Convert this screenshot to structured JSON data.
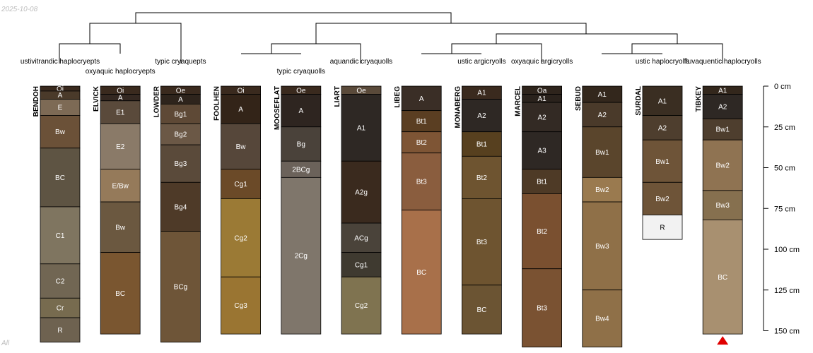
{
  "meta": {
    "date": "2025-10-08",
    "corner_label": "All"
  },
  "depth_axis": {
    "max_cm": 150,
    "ticks": [
      {
        "depth": 0,
        "label": "0 cm"
      },
      {
        "depth": 25,
        "label": "25 cm"
      },
      {
        "depth": 50,
        "label": "50 cm"
      },
      {
        "depth": 75,
        "label": "75 cm"
      },
      {
        "depth": 100,
        "label": "100 cm"
      },
      {
        "depth": 125,
        "label": "125 cm"
      },
      {
        "depth": 150,
        "label": "150 cm"
      }
    ]
  },
  "truncation_marker": {
    "profile": "TIBKEY",
    "color": "#e00000"
  },
  "taxa": [
    {
      "label": "ustivitrandic haplocryepts",
      "profile": "BENDOH"
    },
    {
      "label": "oxyaquic haplocryepts",
      "profile": "ELVICK"
    },
    {
      "label": "typic cryaquepts",
      "profile": "LOWDER"
    },
    {
      "label": "typic cryaquolls",
      "profile": "MOOSEFLAT"
    },
    {
      "label": "aquandic cryaquolls",
      "profile": "LIART"
    },
    {
      "label": "ustic argicryolls",
      "profile": "MONABERG"
    },
    {
      "label": "oxyaquic argicryolls",
      "profile": "MARCEL"
    },
    {
      "label": "ustic haplocryolls",
      "profile": "SURDAL"
    },
    {
      "label": "fluvaquentic haplocryolls",
      "profile": "TIBKEY"
    }
  ],
  "profiles": [
    {
      "name": "BENDOH",
      "horizons": [
        {
          "name": "Oi",
          "top": 0,
          "bottom": 3,
          "color": "#3a2a1e"
        },
        {
          "name": "A",
          "top": 3,
          "bottom": 8,
          "color": "#4a3a2a"
        },
        {
          "name": "E",
          "top": 8,
          "bottom": 18,
          "color": "#7d6a55"
        },
        {
          "name": "Bw",
          "top": 18,
          "bottom": 38,
          "color": "#6b5138"
        },
        {
          "name": "BC",
          "top": 38,
          "bottom": 74,
          "color": "#5e5443"
        },
        {
          "name": "C1",
          "top": 74,
          "bottom": 109,
          "color": "#7f7560"
        },
        {
          "name": "C2",
          "top": 109,
          "bottom": 130,
          "color": "#716653"
        },
        {
          "name": "Cr",
          "top": 130,
          "bottom": 142,
          "color": "#776b4f"
        },
        {
          "name": "R",
          "top": 142,
          "bottom": 157,
          "color": "#6e6250"
        }
      ]
    },
    {
      "name": "ELVICK",
      "horizons": [
        {
          "name": "Oi",
          "top": 0,
          "bottom": 5,
          "color": "#3a2a1e"
        },
        {
          "name": "A",
          "top": 5,
          "bottom": 9,
          "color": "#342821"
        },
        {
          "name": "E1",
          "top": 9,
          "bottom": 23,
          "color": "#5a4a3b"
        },
        {
          "name": "E2",
          "top": 23,
          "bottom": 51,
          "color": "#8a7a68"
        },
        {
          "name": "E/Bw",
          "top": 51,
          "bottom": 71,
          "color": "#957a5a"
        },
        {
          "name": "Bw",
          "top": 71,
          "bottom": 102,
          "color": "#6b5840"
        },
        {
          "name": "BC",
          "top": 102,
          "bottom": 152,
          "color": "#7a5630"
        }
      ]
    },
    {
      "name": "LOWDER",
      "horizons": [
        {
          "name": "Oe",
          "top": 0,
          "bottom": 5,
          "color": "#3a2a1e"
        },
        {
          "name": "A",
          "top": 5,
          "bottom": 11,
          "color": "#2e241c"
        },
        {
          "name": "Bg1",
          "top": 11,
          "bottom": 23,
          "color": "#5e4936"
        },
        {
          "name": "Bg2",
          "top": 23,
          "bottom": 36,
          "color": "#6b5846"
        },
        {
          "name": "Bg3",
          "top": 36,
          "bottom": 59,
          "color": "#5a4a3a"
        },
        {
          "name": "Bg4",
          "top": 59,
          "bottom": 89,
          "color": "#4e3a28"
        },
        {
          "name": "BCg",
          "top": 89,
          "bottom": 157,
          "color": "#6e5538"
        }
      ]
    },
    {
      "name": "FOOLHEN",
      "horizons": [
        {
          "name": "Oi",
          "top": 0,
          "bottom": 5,
          "color": "#3a2a1e"
        },
        {
          "name": "A",
          "top": 5,
          "bottom": 23,
          "color": "#332418"
        },
        {
          "name": "Bw",
          "top": 23,
          "bottom": 51,
          "color": "#56473a"
        },
        {
          "name": "Cg1",
          "top": 51,
          "bottom": 69,
          "color": "#6b4a28"
        },
        {
          "name": "Cg2",
          "top": 69,
          "bottom": 117,
          "color": "#9b7a35"
        },
        {
          "name": "Cg3",
          "top": 117,
          "bottom": 152,
          "color": "#9a7532"
        }
      ]
    },
    {
      "name": "MOOSEFLAT",
      "horizons": [
        {
          "name": "Oe",
          "top": 0,
          "bottom": 5,
          "color": "#3a2a1e"
        },
        {
          "name": "A",
          "top": 5,
          "bottom": 25,
          "color": "#2e2520"
        },
        {
          "name": "Bg",
          "top": 25,
          "bottom": 46,
          "color": "#4a423a"
        },
        {
          "name": "2BCg",
          "top": 46,
          "bottom": 56,
          "color": "#6b625a"
        },
        {
          "name": "2Cg",
          "top": 56,
          "bottom": 152,
          "color": "#7f766b"
        }
      ]
    },
    {
      "name": "LIART",
      "horizons": [
        {
          "name": "Oe",
          "top": 0,
          "bottom": 5,
          "color": "#5a4a3a"
        },
        {
          "name": "A1",
          "top": 5,
          "bottom": 46,
          "color": "#2e2824"
        },
        {
          "name": "A2g",
          "top": 46,
          "bottom": 84,
          "color": "#3a2a1e"
        },
        {
          "name": "ACg",
          "top": 84,
          "bottom": 102,
          "color": "#4a433a"
        },
        {
          "name": "Cg1",
          "top": 102,
          "bottom": 117,
          "color": "#3f3a30"
        },
        {
          "name": "Cg2",
          "top": 117,
          "bottom": 152,
          "color": "#7f7350"
        }
      ]
    },
    {
      "name": "LIBEG",
      "horizons": [
        {
          "name": "A",
          "top": 0,
          "bottom": 15,
          "color": "#3a2e26"
        },
        {
          "name": "Bt1",
          "top": 15,
          "bottom": 28,
          "color": "#5a3e22"
        },
        {
          "name": "Bt2",
          "top": 28,
          "bottom": 41,
          "color": "#7e5535"
        },
        {
          "name": "Bt3",
          "top": 41,
          "bottom": 76,
          "color": "#8a5d3e"
        },
        {
          "name": "BC",
          "top": 76,
          "bottom": 152,
          "color": "#a8704a"
        }
      ]
    },
    {
      "name": "MONABERG",
      "horizons": [
        {
          "name": "A1",
          "top": 0,
          "bottom": 8,
          "color": "#3a2a1e"
        },
        {
          "name": "A2",
          "top": 8,
          "bottom": 28,
          "color": "#2e2824"
        },
        {
          "name": "Bt1",
          "top": 28,
          "bottom": 43,
          "color": "#57401f"
        },
        {
          "name": "Bt2",
          "top": 43,
          "bottom": 69,
          "color": "#6e5430"
        },
        {
          "name": "Bt3",
          "top": 69,
          "bottom": 122,
          "color": "#6e5430"
        },
        {
          "name": "BC",
          "top": 122,
          "bottom": 152,
          "color": "#6b5433"
        }
      ]
    },
    {
      "name": "MARCEL",
      "horizons": [
        {
          "name": "Oa",
          "top": 0,
          "bottom": 5,
          "color": "#2e241c"
        },
        {
          "name": "A1",
          "top": 5,
          "bottom": 10,
          "color": "#2a221c"
        },
        {
          "name": "A2",
          "top": 10,
          "bottom": 28,
          "color": "#332a24"
        },
        {
          "name": "A3",
          "top": 28,
          "bottom": 51,
          "color": "#2e2824"
        },
        {
          "name": "Bt1",
          "top": 51,
          "bottom": 66,
          "color": "#4e3a26"
        },
        {
          "name": "Bt2",
          "top": 66,
          "bottom": 112,
          "color": "#7a5030"
        },
        {
          "name": "Bt3",
          "top": 112,
          "bottom": 160,
          "color": "#7a5232"
        }
      ]
    },
    {
      "name": "SEBUD",
      "horizons": [
        {
          "name": "A1",
          "top": 0,
          "bottom": 10,
          "color": "#33271c"
        },
        {
          "name": "A2",
          "top": 10,
          "bottom": 25,
          "color": "#4a3a2a"
        },
        {
          "name": "Bw1",
          "top": 25,
          "bottom": 56,
          "color": "#5a452c"
        },
        {
          "name": "Bw2",
          "top": 56,
          "bottom": 71,
          "color": "#9a7a4f"
        },
        {
          "name": "Bw3",
          "top": 71,
          "bottom": 125,
          "color": "#8f7048"
        },
        {
          "name": "Bw4",
          "top": 125,
          "bottom": 160,
          "color": "#8f7048"
        }
      ]
    },
    {
      "name": "SURDAL",
      "horizons": [
        {
          "name": "A1",
          "top": 0,
          "bottom": 18,
          "color": "#3a2e22"
        },
        {
          "name": "A2",
          "top": 18,
          "bottom": 33,
          "color": "#4e3e2e"
        },
        {
          "name": "Bw1",
          "top": 33,
          "bottom": 59,
          "color": "#6e5438"
        },
        {
          "name": "Bw2",
          "top": 59,
          "bottom": 79,
          "color": "#6e5438"
        },
        {
          "name": "R",
          "top": 79,
          "bottom": 94,
          "color": "#f2f2f2"
        }
      ]
    },
    {
      "name": "TIBKEY",
      "horizons": [
        {
          "name": "A1",
          "top": 0,
          "bottom": 5,
          "color": "#33271c"
        },
        {
          "name": "A2",
          "top": 5,
          "bottom": 20,
          "color": "#2e2824"
        },
        {
          "name": "Bw1",
          "top": 20,
          "bottom": 33,
          "color": "#4e3e2e"
        },
        {
          "name": "Bw2",
          "top": 33,
          "bottom": 64,
          "color": "#8f7352"
        },
        {
          "name": "Bw3",
          "top": 64,
          "bottom": 82,
          "color": "#86704f"
        },
        {
          "name": "BC",
          "top": 82,
          "bottom": 152,
          "color": "#a89070"
        }
      ]
    }
  ]
}
